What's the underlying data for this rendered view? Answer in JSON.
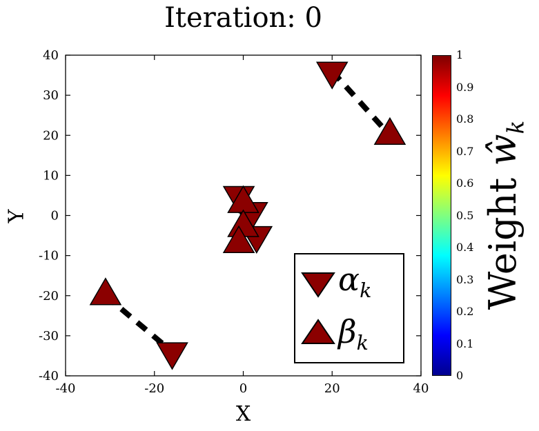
{
  "title": "Iteration: 0",
  "chart_data": {
    "type": "scatter",
    "title": "Iteration: 0",
    "xlabel": "X",
    "ylabel": "Y",
    "xlim": [
      -40,
      40
    ],
    "ylim": [
      -40,
      40
    ],
    "xticks": [
      -40,
      -20,
      0,
      20,
      40
    ],
    "yticks": [
      -40,
      -30,
      -20,
      -10,
      0,
      10,
      20,
      30,
      40
    ],
    "grid": false,
    "marker_color": "#8B0000",
    "marker_edge_color": "#000000",
    "series": [
      {
        "name": "alpha_k",
        "marker": "triangle-down",
        "weight": 1,
        "points": [
          [
            20,
            36
          ],
          [
            -16,
            -34
          ],
          [
            -1,
            5
          ],
          [
            2,
            1
          ],
          [
            3,
            -5
          ]
        ]
      },
      {
        "name": "beta_k",
        "marker": "triangle-up",
        "weight": 1,
        "points": [
          [
            33,
            20
          ],
          [
            -31,
            -20
          ],
          [
            0,
            3
          ],
          [
            0,
            -3
          ],
          [
            -1,
            -7
          ]
        ]
      }
    ],
    "links": {
      "style": "dashed",
      "color": "#000000",
      "pairs": [
        [
          [
            20,
            36
          ],
          [
            33,
            20
          ]
        ],
        [
          [
            -31,
            -20
          ],
          [
            -16,
            -34
          ]
        ],
        [
          [
            -1,
            3
          ],
          [
            2,
            -6
          ]
        ]
      ]
    },
    "legend": {
      "position": "lower-right-inside",
      "items": [
        {
          "marker": "triangle-down",
          "label_base": "α",
          "label_sub": "k"
        },
        {
          "marker": "triangle-up",
          "label_base": "β",
          "label_sub": "k"
        }
      ]
    },
    "colorbar": {
      "label_prefix": "Weight ",
      "label_math": "ŵ",
      "label_sub": "k",
      "range": [
        0,
        1
      ],
      "ticks": [
        0,
        0.1,
        0.2,
        0.3,
        0.4,
        0.5,
        0.6,
        0.7,
        0.8,
        0.9,
        1
      ],
      "colormap": "jet",
      "colormap_stops": [
        {
          "pos": 0,
          "color": "#00008F"
        },
        {
          "pos": 0.125,
          "color": "#0000FF"
        },
        {
          "pos": 0.375,
          "color": "#00FFFF"
        },
        {
          "pos": 0.625,
          "color": "#FFFF00"
        },
        {
          "pos": 0.875,
          "color": "#FF0000"
        },
        {
          "pos": 1,
          "color": "#800000"
        }
      ]
    }
  }
}
